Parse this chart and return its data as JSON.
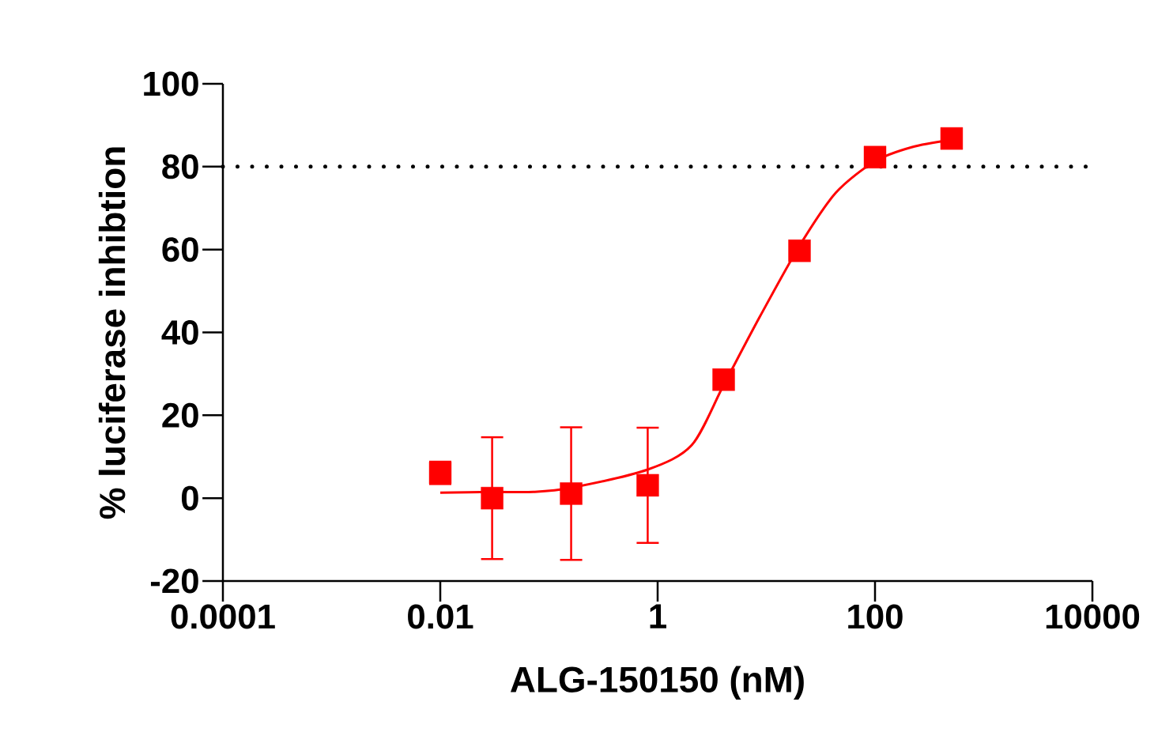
{
  "chart_data": {
    "type": "scatter",
    "xlabel": "ALG-150150 (nM)",
    "ylabel": "% luciferase inhibtion",
    "log": "x",
    "xlim": [
      0.0001,
      10000
    ],
    "ylim": [
      -20,
      100
    ],
    "xticks": [
      0.0001,
      0.01,
      1,
      100,
      10000
    ],
    "yticks": [
      -20,
      0,
      20,
      40,
      60,
      80,
      100
    ],
    "grid": false,
    "ref_lines": [
      {
        "axis": "y",
        "value": 80,
        "color": "#000000",
        "line_style": "dotted"
      }
    ],
    "series": [
      {
        "color": "#ff0000",
        "marker": "square",
        "x": [
          0.01,
          0.03,
          0.16,
          0.81,
          4.05,
          20.2,
          100,
          507
        ],
        "values": [
          6.1,
          0,
          1.1,
          3.1,
          28.6,
          59.7,
          82.3,
          86.8
        ],
        "errors": [
          2.7,
          14.7,
          16,
          13.9,
          null,
          null,
          null,
          null
        ]
      },
      {
        "type": "line",
        "color": "#ff0000",
        "marker": "none",
        "line_style": "solid",
        "x": [
          0.01,
          0.03,
          0.072,
          0.16,
          0.81,
          2.06,
          4.05,
          8.76,
          20.2,
          43.6,
          100,
          217,
          507
        ],
        "values": [
          1.3,
          1.5,
          1.5,
          2.5,
          6.9,
          12.8,
          27.3,
          43.9,
          60.9,
          73.7,
          81.3,
          84.7,
          86.5
        ]
      }
    ]
  }
}
